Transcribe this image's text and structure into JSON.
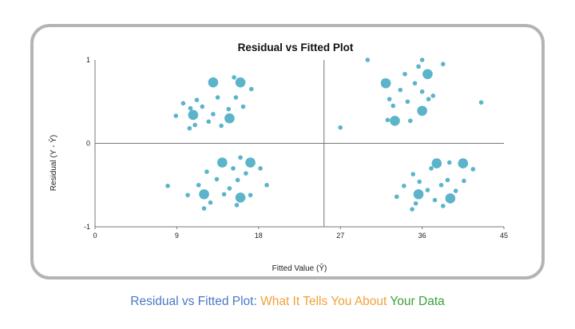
{
  "chart_data": {
    "type": "scatter",
    "title": "Residual vs Fitted Plot",
    "xlabel": "Fitted Value (Ŷ)",
    "ylabel": "Residual (Y - Ŷ)",
    "xlim": [
      0,
      45
    ],
    "ylim": [
      -1,
      1
    ],
    "xticks": [
      0,
      9,
      18,
      27,
      36,
      45
    ],
    "yticks": [
      -1,
      0,
      1
    ],
    "reference_lines": {
      "x": 25.2,
      "y": 0
    },
    "point_color": "#5bb4c9",
    "grid": false,
    "legend": "none",
    "small_points": [
      {
        "x": 8.9,
        "y": 0.33
      },
      {
        "x": 9.7,
        "y": 0.48
      },
      {
        "x": 10.5,
        "y": 0.42
      },
      {
        "x": 11.2,
        "y": 0.52
      },
      {
        "x": 11.0,
        "y": 0.22
      },
      {
        "x": 11.8,
        "y": 0.44
      },
      {
        "x": 12.5,
        "y": 0.26
      },
      {
        "x": 13.5,
        "y": 0.55
      },
      {
        "x": 13.0,
        "y": 0.35
      },
      {
        "x": 14.7,
        "y": 0.41
      },
      {
        "x": 15.3,
        "y": 0.79
      },
      {
        "x": 15.5,
        "y": 0.55
      },
      {
        "x": 16.3,
        "y": 0.44
      },
      {
        "x": 10.4,
        "y": 0.18
      },
      {
        "x": 13.9,
        "y": 0.21
      },
      {
        "x": 17.2,
        "y": 0.65
      },
      {
        "x": 8.0,
        "y": -0.51
      },
      {
        "x": 10.2,
        "y": -0.62
      },
      {
        "x": 11.4,
        "y": -0.5
      },
      {
        "x": 12.3,
        "y": -0.34
      },
      {
        "x": 12.7,
        "y": -0.71
      },
      {
        "x": 13.4,
        "y": -0.43
      },
      {
        "x": 14.2,
        "y": -0.61
      },
      {
        "x": 14.8,
        "y": -0.54
      },
      {
        "x": 15.2,
        "y": -0.3
      },
      {
        "x": 16.0,
        "y": -0.17
      },
      {
        "x": 16.6,
        "y": -0.36
      },
      {
        "x": 15.7,
        "y": -0.44
      },
      {
        "x": 18.2,
        "y": -0.3
      },
      {
        "x": 18.9,
        "y": -0.5
      },
      {
        "x": 12.0,
        "y": -0.78
      },
      {
        "x": 15.6,
        "y": -0.74
      },
      {
        "x": 14.0,
        "y": -0.22
      },
      {
        "x": 17.1,
        "y": -0.62
      },
      {
        "x": 30.0,
        "y": 1.0
      },
      {
        "x": 31.8,
        "y": 0.75
      },
      {
        "x": 32.4,
        "y": 0.53
      },
      {
        "x": 32.8,
        "y": 0.45
      },
      {
        "x": 33.6,
        "y": 0.64
      },
      {
        "x": 34.1,
        "y": 0.83
      },
      {
        "x": 34.4,
        "y": 0.5
      },
      {
        "x": 35.2,
        "y": 0.72
      },
      {
        "x": 35.6,
        "y": 0.92
      },
      {
        "x": 36.0,
        "y": 0.62
      },
      {
        "x": 36.7,
        "y": 0.53
      },
      {
        "x": 37.2,
        "y": 0.57
      },
      {
        "x": 38.3,
        "y": 0.95
      },
      {
        "x": 42.5,
        "y": 0.49
      },
      {
        "x": 27.0,
        "y": 0.19
      },
      {
        "x": 34.7,
        "y": 0.27
      },
      {
        "x": 32.2,
        "y": 0.28
      },
      {
        "x": 36.0,
        "y": 1.0
      },
      {
        "x": 33.2,
        "y": -0.64
      },
      {
        "x": 34.0,
        "y": -0.51
      },
      {
        "x": 35.0,
        "y": -0.37
      },
      {
        "x": 35.3,
        "y": -0.72
      },
      {
        "x": 35.7,
        "y": -0.46
      },
      {
        "x": 36.6,
        "y": -0.56
      },
      {
        "x": 37.4,
        "y": -0.68
      },
      {
        "x": 38.1,
        "y": -0.5
      },
      {
        "x": 38.8,
        "y": -0.44
      },
      {
        "x": 39.0,
        "y": -0.23
      },
      {
        "x": 39.7,
        "y": -0.57
      },
      {
        "x": 40.6,
        "y": -0.45
      },
      {
        "x": 41.6,
        "y": -0.31
      },
      {
        "x": 34.9,
        "y": -0.79
      },
      {
        "x": 38.3,
        "y": -0.75
      },
      {
        "x": 37.0,
        "y": -0.3
      }
    ],
    "large_points": [
      {
        "x": 13.0,
        "y": 0.73
      },
      {
        "x": 16.0,
        "y": 0.73
      },
      {
        "x": 10.8,
        "y": 0.34
      },
      {
        "x": 14.8,
        "y": 0.3
      },
      {
        "x": 14.0,
        "y": -0.23
      },
      {
        "x": 17.1,
        "y": -0.23
      },
      {
        "x": 12.0,
        "y": -0.61
      },
      {
        "x": 16.0,
        "y": -0.65
      },
      {
        "x": 32.0,
        "y": 0.72
      },
      {
        "x": 36.6,
        "y": 0.83
      },
      {
        "x": 33.0,
        "y": 0.27
      },
      {
        "x": 36.0,
        "y": 0.39
      },
      {
        "x": 37.6,
        "y": -0.24
      },
      {
        "x": 40.5,
        "y": -0.24
      },
      {
        "x": 35.6,
        "y": -0.61
      },
      {
        "x": 39.1,
        "y": -0.66
      }
    ]
  },
  "caption": {
    "part1": "Residual vs Fitted Plot: ",
    "part2": "What It Tells You About ",
    "part3": "Your Data",
    "color1": "#4a78c4",
    "color2": "#f0a23a",
    "color3": "#3aa03a"
  }
}
